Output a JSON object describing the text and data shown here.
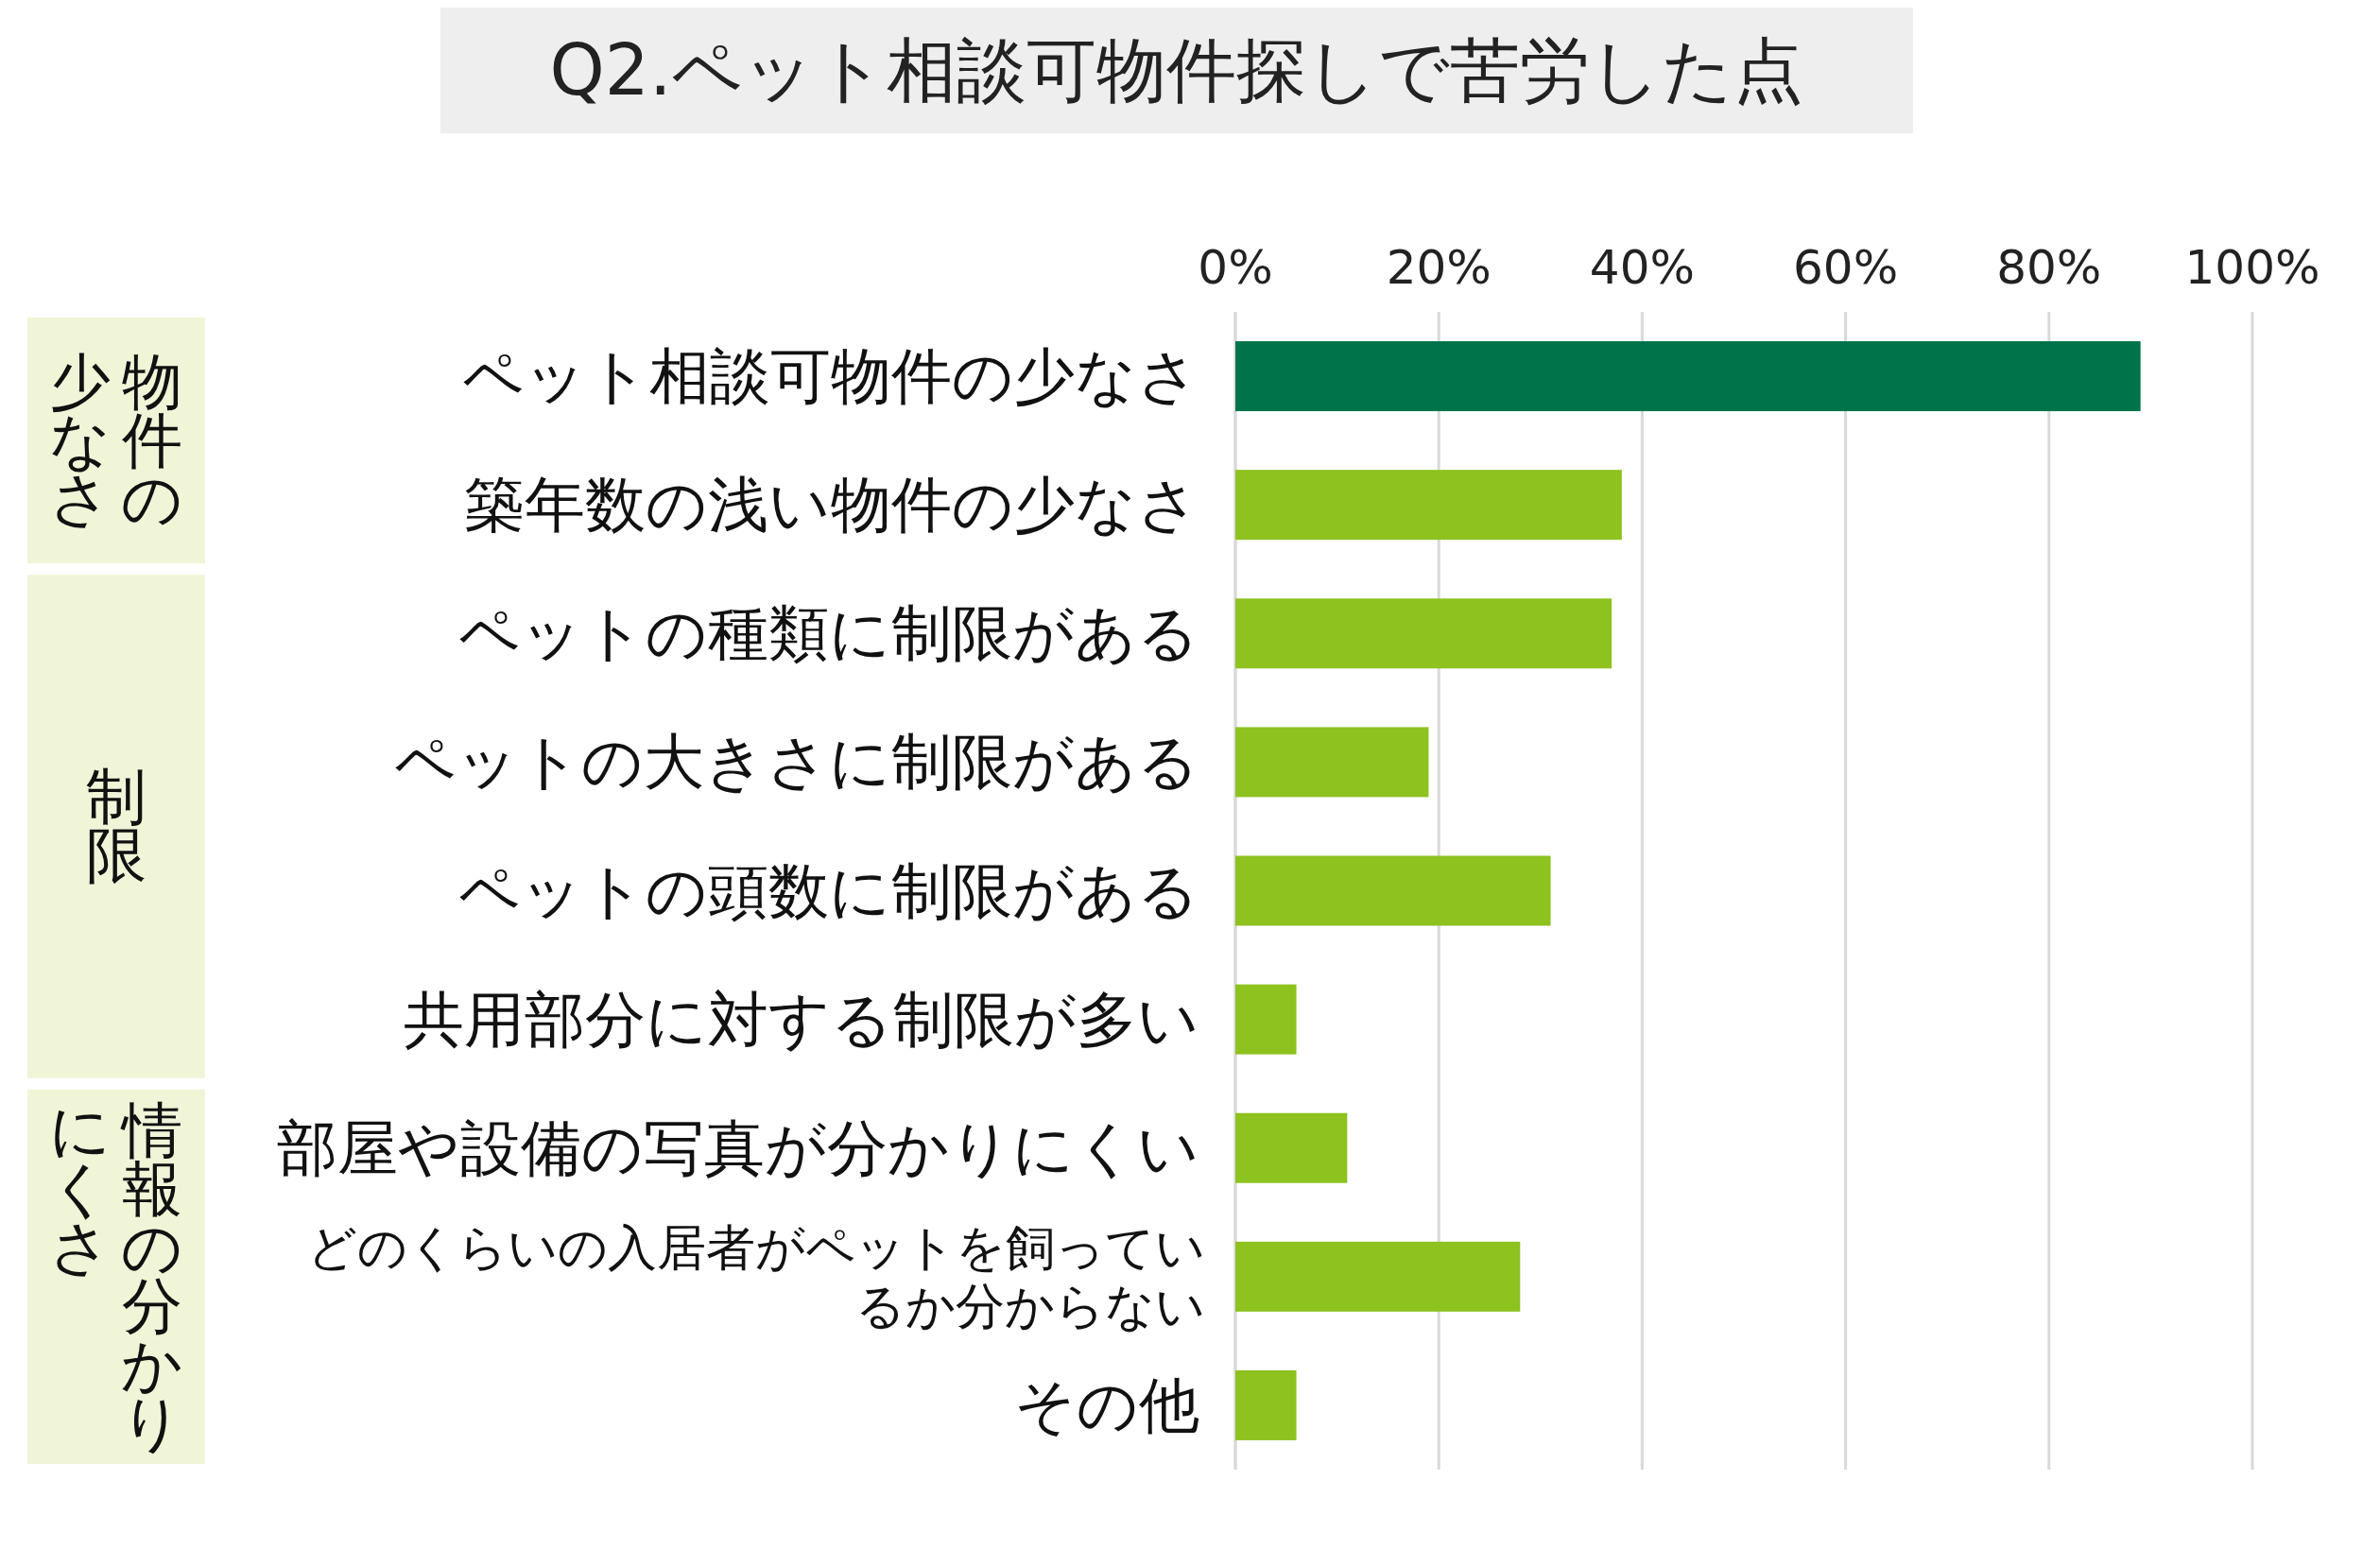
{
  "chart_data": {
    "type": "bar",
    "orientation": "horizontal",
    "title": "Q2.ペット相談可物件探しで苦労した点",
    "categories": [
      "ペット相談可物件の少なさ",
      "築年数の浅い物件の少なさ",
      "ペットの種類に制限がある",
      "ペットの大きさに制限がある",
      "ペットの頭数に制限がある",
      "共用部分に対する制限が多い",
      "部屋や設備の写真が分かりにくい",
      "どのくらいの入居者がペットを飼っているか分からない",
      "その他"
    ],
    "values": [
      89,
      38,
      37,
      19,
      31,
      6,
      11,
      28,
      6
    ],
    "colors": [
      "#00734a",
      "#8dc21f",
      "#8dc21f",
      "#8dc21f",
      "#8dc21f",
      "#8dc21f",
      "#8dc21f",
      "#8dc21f",
      "#8dc21f"
    ],
    "xlim": [
      0,
      100
    ],
    "xticks": [
      {
        "value": 0,
        "label": "0%"
      },
      {
        "value": 20,
        "label": "20%"
      },
      {
        "value": 40,
        "label": "40%"
      },
      {
        "value": 60,
        "label": "60%"
      },
      {
        "value": 80,
        "label": "80%"
      },
      {
        "value": 100,
        "label": "100%"
      }
    ],
    "grid": "x",
    "annotations": [
      "物件の少なさ",
      "制限",
      "情報の分かり",
      "にくさ"
    ]
  }
}
